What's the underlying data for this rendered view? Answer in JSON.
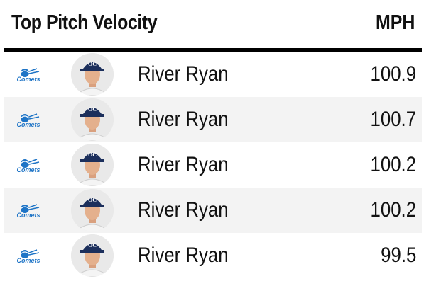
{
  "header": {
    "title": "Top Pitch Velocity",
    "column_label": "MPH"
  },
  "team_logo": {
    "icon": "comets-team-logo",
    "text": "Comets",
    "color": "#1e74c6"
  },
  "rows": [
    {
      "player": "River Ryan",
      "value": "100.9",
      "avatar": "player-headshot"
    },
    {
      "player": "River Ryan",
      "value": "100.7",
      "avatar": "player-headshot"
    },
    {
      "player": "River Ryan",
      "value": "100.2",
      "avatar": "player-headshot"
    },
    {
      "player": "River Ryan",
      "value": "100.2",
      "avatar": "player-headshot"
    },
    {
      "player": "River Ryan",
      "value": "99.5",
      "avatar": "player-headshot"
    }
  ]
}
